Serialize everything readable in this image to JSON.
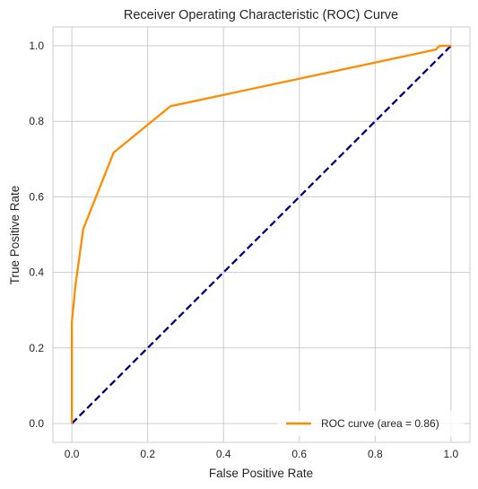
{
  "chart_data": {
    "type": "line",
    "title": "Receiver Operating Characteristic (ROC) Curve",
    "xlabel": "False Positive Rate",
    "ylabel": "True Positive Rate",
    "xlim": [
      -0.05,
      1.05
    ],
    "ylim": [
      -0.05,
      1.05
    ],
    "xticks": [
      0.0,
      0.2,
      0.4,
      0.6,
      0.8,
      1.0
    ],
    "yticks": [
      0.0,
      0.2,
      0.4,
      0.6,
      0.8,
      1.0
    ],
    "xtick_labels": [
      "0.0",
      "0.2",
      "0.4",
      "0.6",
      "0.8",
      "1.0"
    ],
    "ytick_labels": [
      "0.0",
      "0.2",
      "0.4",
      "0.6",
      "0.8",
      "1.0"
    ],
    "grid": true,
    "legend_position": "bottom-right",
    "series": [
      {
        "name": "ROC curve (area = 0.86)",
        "color": "#ff8c00",
        "style": "solid",
        "x": [
          0.0,
          0.0,
          0.005,
          0.01,
          0.03,
          0.11,
          0.26,
          0.96,
          0.97,
          1.0
        ],
        "y": [
          0.0,
          0.27,
          0.32,
          0.37,
          0.515,
          0.717,
          0.84,
          0.99,
          1.0,
          1.0
        ]
      },
      {
        "name": "",
        "color": "#000080",
        "style": "dashed",
        "x": [
          0.0,
          1.0
        ],
        "y": [
          0.0,
          1.0
        ]
      }
    ]
  }
}
